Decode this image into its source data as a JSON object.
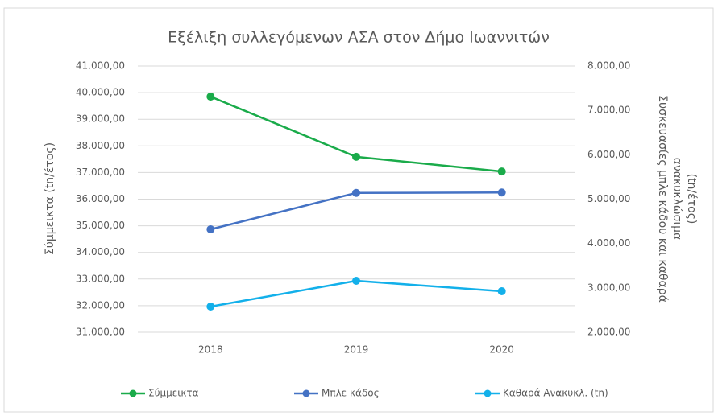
{
  "chart_data": {
    "type": "line",
    "title": "Εξέλιξη συλλεγόμενων ΑΣΑ στον Δήμο Ιωαννιτών",
    "y_label": "Σύμμεικτα (tn/έτος)",
    "y2_label": [
      "Συσκευασίες μπλε κάδου και καθαρά",
      "ανακυκλώσιμα",
      "(tn/έτος)"
    ],
    "categories": [
      "2018",
      "2019",
      "2020"
    ],
    "series": [
      {
        "name": "Σύμμεικτα",
        "color": "#1aab4a",
        "values": [
          39850,
          37590,
          37040
        ]
      },
      {
        "name": "Μπλε κάδος",
        "color": "#4472c4",
        "axis": "y2",
        "values": [
          4320,
          5140,
          5150
        ]
      },
      {
        "name": "Καθαρά Ανακυκλ. (tn)",
        "color": "#13b0ea",
        "axis": "y2",
        "values": [
          2580,
          3160,
          2925
        ]
      }
    ],
    "ylim": [
      31000,
      41000
    ],
    "yticks": [
      {
        "value": 31000,
        "label": "31.000,00"
      },
      {
        "value": 32000,
        "label": "32.000,00"
      },
      {
        "value": 33000,
        "label": "33.000,00"
      },
      {
        "value": 34000,
        "label": "34.000,00"
      },
      {
        "value": 35000,
        "label": "35.000,00"
      },
      {
        "value": 36000,
        "label": "36.000,00"
      },
      {
        "value": 37000,
        "label": "37.000,00"
      },
      {
        "value": 38000,
        "label": "38.000,00"
      },
      {
        "value": 39000,
        "label": "39.000,00"
      },
      {
        "value": 40000,
        "label": "40.000,00"
      },
      {
        "value": 41000,
        "label": "41.000,00"
      }
    ],
    "y2lim": [
      2000,
      8000
    ],
    "y2ticks": [
      {
        "value": 2000,
        "label": "2.000,00"
      },
      {
        "value": 3000,
        "label": "3.000,00"
      },
      {
        "value": 4000,
        "label": "4.000,00"
      },
      {
        "value": 5000,
        "label": "5.000,00"
      },
      {
        "value": 6000,
        "label": "6.000,00"
      },
      {
        "value": 7000,
        "label": "7.000,00"
      },
      {
        "value": 8000,
        "label": "8.000,00"
      }
    ],
    "grid": true,
    "legend": "bottom"
  }
}
